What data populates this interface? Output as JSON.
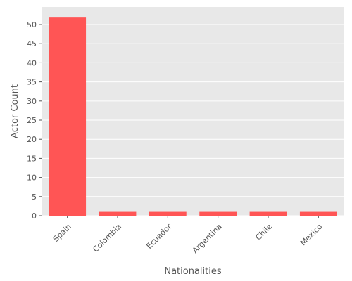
{
  "chart_data": {
    "type": "bar",
    "categories": [
      "Spain",
      "Colombia",
      "Ecuador",
      "Argentina",
      "Chile",
      "Mexico"
    ],
    "values": [
      52,
      1,
      1,
      1,
      1,
      1
    ],
    "xlabel": "Nationalities",
    "ylabel": "Actor Count",
    "ylim": [
      0,
      54.6
    ],
    "yticks": [
      0,
      5,
      10,
      15,
      20,
      25,
      30,
      35,
      40,
      45,
      50
    ],
    "grid": true,
    "colors": {
      "bar": "#ff5555",
      "plot_background": "#e8e8e8",
      "grid": "#ffffff",
      "text": "#555555"
    }
  }
}
